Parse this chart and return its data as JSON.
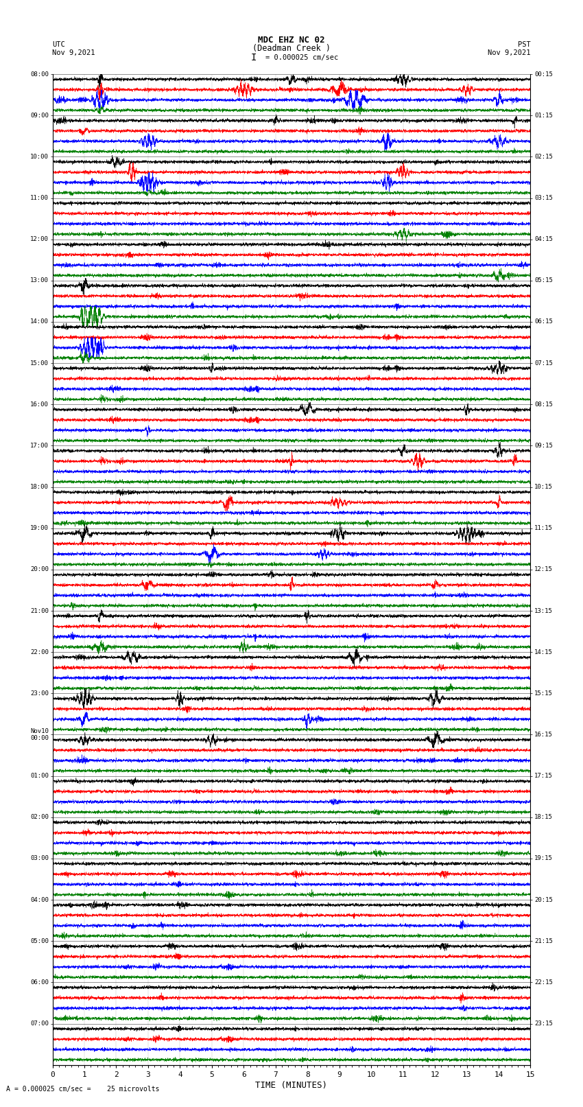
{
  "title_line1": "MDC EHZ NC 02",
  "title_line2": "(Deadman Creek )",
  "scale_text": "I = 0.000025 cm/sec",
  "bottom_scale_text": "= 0.000025 cm/sec =    25 microvolts",
  "left_label_top": "UTC",
  "left_label_date": "Nov 9,2021",
  "right_label_top": "PST",
  "right_label_date": "Nov 9,2021",
  "xlabel": "TIME (MINUTES)",
  "xlim": [
    0,
    15
  ],
  "xticks": [
    0,
    1,
    2,
    3,
    4,
    5,
    6,
    7,
    8,
    9,
    10,
    11,
    12,
    13,
    14,
    15
  ],
  "left_times": [
    "08:00",
    "09:00",
    "10:00",
    "11:00",
    "12:00",
    "13:00",
    "14:00",
    "15:00",
    "16:00",
    "17:00",
    "18:00",
    "19:00",
    "20:00",
    "21:00",
    "22:00",
    "23:00",
    "Nov10\n00:00",
    "01:00",
    "02:00",
    "03:00",
    "04:00",
    "05:00",
    "06:00",
    "07:00"
  ],
  "right_times": [
    "00:15",
    "01:15",
    "02:15",
    "03:15",
    "04:15",
    "05:15",
    "06:15",
    "07:15",
    "08:15",
    "09:15",
    "10:15",
    "11:15",
    "12:15",
    "13:15",
    "14:15",
    "15:15",
    "16:15",
    "17:15",
    "18:15",
    "19:15",
    "20:15",
    "21:15",
    "22:15",
    "23:15"
  ],
  "n_rows": 24,
  "traces_per_row": 4,
  "colors": [
    "black",
    "red",
    "blue",
    "green"
  ],
  "bg_color": "white",
  "trace_amplitude": 0.28,
  "noise_scale": 0.07,
  "seed": 42
}
